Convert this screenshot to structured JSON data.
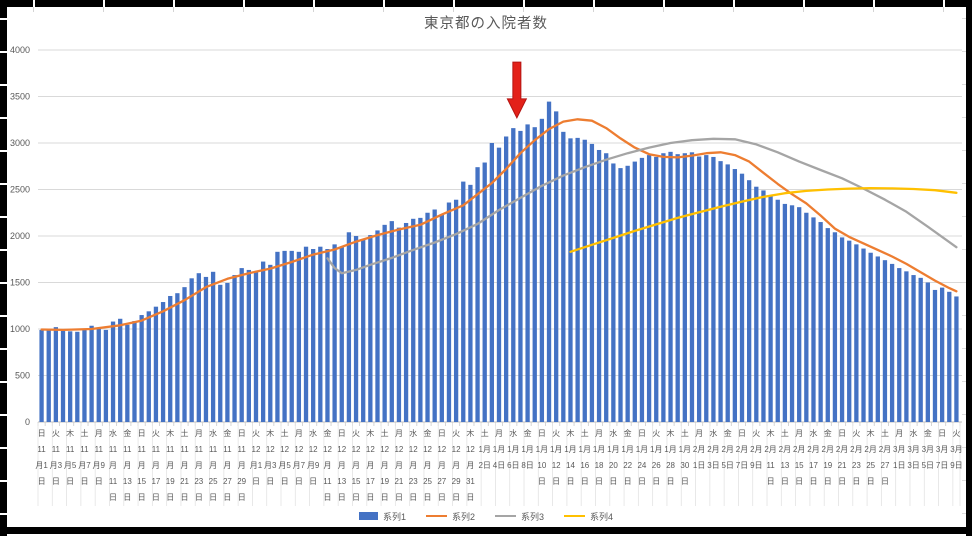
{
  "chart_data": {
    "type": "bar",
    "title": "東京都の入院者数",
    "ylim": [
      0,
      4000
    ],
    "yticks": [
      "0",
      "500",
      "1000",
      "1500",
      "2000",
      "2500",
      "3000",
      "3500",
      "4000"
    ],
    "n_categories": 129,
    "x_label_note": "daily bars Nov 1 2020 - Mar 9 2021, tick labels every 2 days (weekday + date)",
    "x_labels": [
      {
        "w": "日",
        "m": 11,
        "d": 1
      },
      {
        "w": "火",
        "m": 11,
        "d": 3
      },
      {
        "w": "木",
        "m": 11,
        "d": 5
      },
      {
        "w": "土",
        "m": 11,
        "d": 7
      },
      {
        "w": "月",
        "m": 11,
        "d": 9
      },
      {
        "w": "水",
        "m": 11,
        "d": 11
      },
      {
        "w": "金",
        "m": 11,
        "d": 13
      },
      {
        "w": "日",
        "m": 11,
        "d": 15
      },
      {
        "w": "火",
        "m": 11,
        "d": 17
      },
      {
        "w": "木",
        "m": 11,
        "d": 19
      },
      {
        "w": "土",
        "m": 11,
        "d": 21
      },
      {
        "w": "月",
        "m": 11,
        "d": 23
      },
      {
        "w": "水",
        "m": 11,
        "d": 25
      },
      {
        "w": "金",
        "m": 11,
        "d": 27
      },
      {
        "w": "日",
        "m": 11,
        "d": 29
      },
      {
        "w": "火",
        "m": 12,
        "d": 1
      },
      {
        "w": "木",
        "m": 12,
        "d": 3
      },
      {
        "w": "土",
        "m": 12,
        "d": 5
      },
      {
        "w": "月",
        "m": 12,
        "d": 7
      },
      {
        "w": "水",
        "m": 12,
        "d": 9
      },
      {
        "w": "金",
        "m": 12,
        "d": 11
      },
      {
        "w": "日",
        "m": 12,
        "d": 13
      },
      {
        "w": "火",
        "m": 12,
        "d": 15
      },
      {
        "w": "木",
        "m": 12,
        "d": 17
      },
      {
        "w": "土",
        "m": 12,
        "d": 19
      },
      {
        "w": "月",
        "m": 12,
        "d": 21
      },
      {
        "w": "水",
        "m": 12,
        "d": 23
      },
      {
        "w": "金",
        "m": 12,
        "d": 25
      },
      {
        "w": "日",
        "m": 12,
        "d": 27
      },
      {
        "w": "火",
        "m": 12,
        "d": 29
      },
      {
        "w": "木",
        "m": 12,
        "d": 31
      },
      {
        "w": "土",
        "m": 1,
        "d": 2
      },
      {
        "w": "月",
        "m": 1,
        "d": 4
      },
      {
        "w": "水",
        "m": 1,
        "d": 6
      },
      {
        "w": "金",
        "m": 1,
        "d": 8
      },
      {
        "w": "日",
        "m": 1,
        "d": 10
      },
      {
        "w": "火",
        "m": 1,
        "d": 12
      },
      {
        "w": "木",
        "m": 1,
        "d": 14
      },
      {
        "w": "土",
        "m": 1,
        "d": 16
      },
      {
        "w": "月",
        "m": 1,
        "d": 18
      },
      {
        "w": "水",
        "m": 1,
        "d": 20
      },
      {
        "w": "金",
        "m": 1,
        "d": 22
      },
      {
        "w": "日",
        "m": 1,
        "d": 24
      },
      {
        "w": "火",
        "m": 1,
        "d": 26
      },
      {
        "w": "木",
        "m": 1,
        "d": 28
      },
      {
        "w": "土",
        "m": 1,
        "d": 30
      },
      {
        "w": "月",
        "m": 2,
        "d": 1
      },
      {
        "w": "水",
        "m": 2,
        "d": 3
      },
      {
        "w": "金",
        "m": 2,
        "d": 5
      },
      {
        "w": "日",
        "m": 2,
        "d": 7
      },
      {
        "w": "火",
        "m": 2,
        "d": 9
      },
      {
        "w": "木",
        "m": 2,
        "d": 11
      },
      {
        "w": "土",
        "m": 2,
        "d": 13
      },
      {
        "w": "月",
        "m": 2,
        "d": 15
      },
      {
        "w": "水",
        "m": 2,
        "d": 17
      },
      {
        "w": "金",
        "m": 2,
        "d": 19
      },
      {
        "w": "日",
        "m": 2,
        "d": 21
      },
      {
        "w": "火",
        "m": 2,
        "d": 23
      },
      {
        "w": "木",
        "m": 2,
        "d": 25
      },
      {
        "w": "土",
        "m": 2,
        "d": 27
      },
      {
        "w": "月",
        "m": 3,
        "d": 1
      },
      {
        "w": "水",
        "m": 3,
        "d": 3
      },
      {
        "w": "金",
        "m": 3,
        "d": 5
      },
      {
        "w": "日",
        "m": 3,
        "d": 7
      },
      {
        "w": "火",
        "m": 3,
        "d": 9
      }
    ],
    "series": [
      {
        "name": "系列1",
        "type": "bar",
        "color": "#4472C4",
        "values": [
          990,
          985,
          1020,
          980,
          975,
          970,
          1000,
          1035,
          1005,
          990,
          1080,
          1110,
          1045,
          1085,
          1150,
          1190,
          1240,
          1290,
          1355,
          1385,
          1450,
          1545,
          1600,
          1560,
          1615,
          1475,
          1495,
          1580,
          1655,
          1635,
          1615,
          1725,
          1690,
          1830,
          1840,
          1840,
          1830,
          1885,
          1860,
          1885,
          1860,
          1910,
          1880,
          2040,
          2000,
          1965,
          2010,
          2060,
          2120,
          2160,
          2090,
          2140,
          2185,
          2195,
          2250,
          2285,
          2230,
          2360,
          2390,
          2585,
          2550,
          2740,
          2790,
          3000,
          2950,
          3070,
          3160,
          3130,
          3200,
          3170,
          3260,
          3445,
          3340,
          3120,
          3050,
          3055,
          3035,
          2990,
          2925,
          2890,
          2780,
          2730,
          2755,
          2800,
          2840,
          2870,
          2850,
          2890,
          2905,
          2880,
          2890,
          2900,
          2855,
          2870,
          2850,
          2805,
          2770,
          2720,
          2670,
          2600,
          2530,
          2490,
          2440,
          2390,
          2345,
          2330,
          2310,
          2250,
          2200,
          2150,
          2085,
          2040,
          1985,
          1950,
          1910,
          1865,
          1820,
          1780,
          1740,
          1700,
          1655,
          1620,
          1580,
          1550,
          1500,
          1420,
          1445,
          1400,
          1350
        ]
      },
      {
        "name": "系列2",
        "type": "line",
        "color": "#ED7D31",
        "points": [
          [
            1,
            995
          ],
          [
            4,
            990
          ],
          [
            8,
            1000
          ],
          [
            12,
            1040
          ],
          [
            15,
            1090
          ],
          [
            18,
            1190
          ],
          [
            21,
            1310
          ],
          [
            24,
            1450
          ],
          [
            27,
            1540
          ],
          [
            30,
            1600
          ],
          [
            33,
            1650
          ],
          [
            36,
            1720
          ],
          [
            39,
            1800
          ],
          [
            42,
            1855
          ],
          [
            45,
            1940
          ],
          [
            48,
            2010
          ],
          [
            51,
            2070
          ],
          [
            54,
            2120
          ],
          [
            57,
            2230
          ],
          [
            60,
            2330
          ],
          [
            62,
            2450
          ],
          [
            64,
            2570
          ],
          [
            66,
            2720
          ],
          [
            68,
            2890
          ],
          [
            70,
            3030
          ],
          [
            72,
            3150
          ],
          [
            74,
            3230
          ],
          [
            76,
            3255
          ],
          [
            78,
            3240
          ],
          [
            80,
            3160
          ],
          [
            82,
            3050
          ],
          [
            84,
            2950
          ],
          [
            86,
            2880
          ],
          [
            88,
            2850
          ],
          [
            90,
            2845
          ],
          [
            92,
            2865
          ],
          [
            94,
            2890
          ],
          [
            96,
            2900
          ],
          [
            98,
            2870
          ],
          [
            100,
            2800
          ],
          [
            102,
            2680
          ],
          [
            104,
            2560
          ],
          [
            106,
            2450
          ],
          [
            108,
            2350
          ],
          [
            110,
            2220
          ],
          [
            112,
            2080
          ],
          [
            114,
            1990
          ],
          [
            116,
            1920
          ],
          [
            118,
            1850
          ],
          [
            120,
            1780
          ],
          [
            122,
            1700
          ],
          [
            124,
            1610
          ],
          [
            126,
            1520
          ],
          [
            128,
            1440
          ],
          [
            129,
            1405
          ]
        ]
      },
      {
        "name": "系列3",
        "type": "line",
        "color": "#A5A5A5",
        "points": [
          [
            41,
            1760
          ],
          [
            42,
            1655
          ],
          [
            43,
            1600
          ],
          [
            45,
            1635
          ],
          [
            47,
            1690
          ],
          [
            50,
            1765
          ],
          [
            53,
            1850
          ],
          [
            56,
            1930
          ],
          [
            59,
            2020
          ],
          [
            62,
            2130
          ],
          [
            65,
            2280
          ],
          [
            68,
            2410
          ],
          [
            71,
            2540
          ],
          [
            74,
            2650
          ],
          [
            77,
            2740
          ],
          [
            80,
            2820
          ],
          [
            83,
            2890
          ],
          [
            86,
            2950
          ],
          [
            89,
            3000
          ],
          [
            92,
            3030
          ],
          [
            95,
            3045
          ],
          [
            98,
            3040
          ],
          [
            101,
            2985
          ],
          [
            104,
            2900
          ],
          [
            107,
            2800
          ],
          [
            110,
            2710
          ],
          [
            113,
            2620
          ],
          [
            116,
            2510
          ],
          [
            119,
            2390
          ],
          [
            122,
            2260
          ],
          [
            125,
            2100
          ],
          [
            127,
            1990
          ],
          [
            129,
            1880
          ]
        ]
      },
      {
        "name": "系列4",
        "type": "line",
        "color": "#FFC000",
        "points": [
          [
            75,
            1830
          ],
          [
            78,
            1905
          ],
          [
            81,
            1980
          ],
          [
            84,
            2055
          ],
          [
            87,
            2125
          ],
          [
            90,
            2195
          ],
          [
            93,
            2255
          ],
          [
            96,
            2315
          ],
          [
            99,
            2370
          ],
          [
            102,
            2420
          ],
          [
            105,
            2460
          ],
          [
            108,
            2485
          ],
          [
            111,
            2500
          ],
          [
            114,
            2510
          ],
          [
            117,
            2515
          ],
          [
            120,
            2512
          ],
          [
            123,
            2505
          ],
          [
            126,
            2492
          ],
          [
            129,
            2465
          ]
        ]
      }
    ],
    "annotation": {
      "shape": "down-arrow",
      "day": 67.5,
      "top_value": 3870,
      "tip_value": 3270,
      "fill": "#e32119",
      "stroke": "#b41412"
    },
    "grid": {
      "color": "#d9d9d9",
      "axis_color": "#bfbfbf",
      "label_color": "#595959"
    },
    "legend_position": "bottom-center"
  },
  "legend": {
    "items": [
      {
        "label": "系列1",
        "swatch": "bar",
        "color": "#4472C4"
      },
      {
        "label": "系列2",
        "swatch": "line",
        "color": "#ED7D31"
      },
      {
        "label": "系列3",
        "swatch": "line",
        "color": "#A5A5A5"
      },
      {
        "label": "系列4",
        "swatch": "line",
        "color": "#FFC000"
      }
    ]
  }
}
